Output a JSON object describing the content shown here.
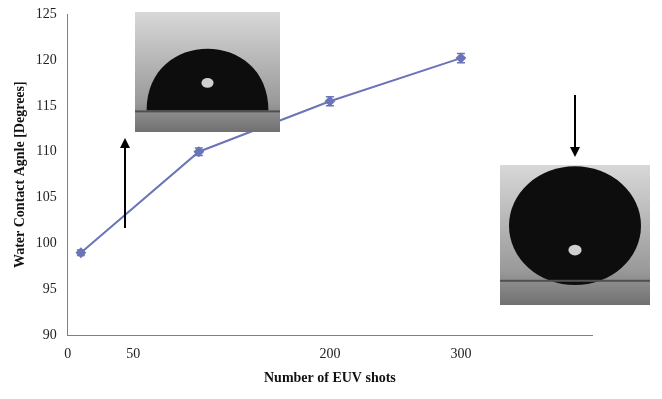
{
  "chart_data": {
    "type": "line",
    "x_label": "Number of EUV shots",
    "y_label": "Water Contact Agnle [Degrees]",
    "x": [
      10,
      100,
      200,
      300
    ],
    "values": [
      99,
      110,
      115.5,
      120.2
    ],
    "errors": [
      0.3,
      0.4,
      0.5,
      0.5
    ],
    "color": "#6b74b8",
    "marker": "diamond",
    "line_style": "solid",
    "xlim": [
      0,
      400
    ],
    "xticks": [
      0,
      50,
      200,
      300
    ],
    "ylim": [
      90,
      125
    ],
    "yticks": [
      90,
      95,
      100,
      105,
      110,
      115,
      120,
      125
    ],
    "grid": false
  }
}
